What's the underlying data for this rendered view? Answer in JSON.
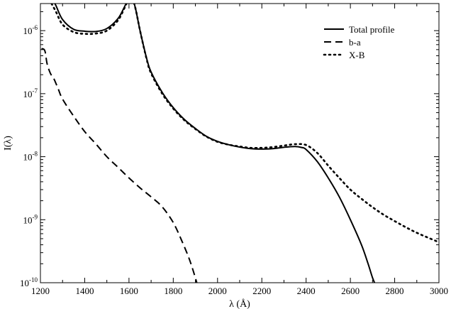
{
  "chart_data": {
    "type": "line",
    "xlabel": "λ (Å)",
    "ylabel": "I(λ)",
    "xlim": [
      1200,
      3000
    ],
    "ylim_log10": [
      -10,
      -5.57
    ],
    "y_scale": "log",
    "grid": false,
    "legend_placement": "top-right",
    "x_ticks": [
      1200,
      1400,
      1600,
      1800,
      2000,
      2200,
      2400,
      2600,
      2800,
      3000
    ],
    "x_tick_labels": [
      "1200",
      "1400",
      "1600",
      "1800",
      "2000",
      "2200",
      "2400",
      "2600",
      "2800",
      "3000"
    ],
    "y_ticks_log10": [
      -10,
      -9,
      -8,
      -7,
      -6
    ],
    "y_tick_labels": [
      {
        "base": "10",
        "exp": "-10"
      },
      {
        "base": "10",
        "exp": "-9"
      },
      {
        "base": "10",
        "exp": "-8"
      },
      {
        "base": "10",
        "exp": "-7"
      },
      {
        "base": "10",
        "exp": "-6"
      }
    ],
    "series": [
      {
        "name": "Total profile",
        "style": "solid",
        "x": [
          1250,
          1270,
          1300,
          1350,
          1400,
          1450,
          1500,
          1550,
          1580,
          1600,
          1615,
          1630,
          1650,
          1680,
          1700,
          1750,
          1800,
          1850,
          1900,
          1950,
          2000,
          2050,
          2100,
          2150,
          2200,
          2250,
          2300,
          2350,
          2380,
          2400,
          2450,
          2500,
          2550,
          2600,
          2650,
          2680,
          2700,
          2715
        ],
        "y": [
          3.4e-06,
          2.5e-06,
          1.5e-06,
          1.05e-06,
          9.8e-07,
          9.7e-07,
          1.08e-06,
          1.55e-06,
          2.4e-06,
          3.3e-06,
          3.3e-06,
          2.2e-06,
          1e-06,
          3.6e-07,
          2.2e-07,
          1.05e-07,
          6e-08,
          3.9e-08,
          2.8e-08,
          2.1e-08,
          1.75e-08,
          1.55e-08,
          1.42e-08,
          1.34e-08,
          1.32e-08,
          1.34e-08,
          1.41e-08,
          1.45e-08,
          1.4e-08,
          1.3e-08,
          8.4e-09,
          4.6e-09,
          2.3e-09,
          1e-09,
          4e-10,
          2e-10,
          1.2e-10,
          9e-11
        ]
      },
      {
        "name": "b-a",
        "style": "dashed",
        "x": [
          1205,
          1220,
          1230,
          1245,
          1260,
          1280,
          1300,
          1350,
          1400,
          1450,
          1500,
          1550,
          1600,
          1650,
          1700,
          1750,
          1800,
          1840,
          1870,
          1890,
          1910,
          1920
        ],
        "y": [
          5.2e-07,
          4.8e-07,
          3e-07,
          2.1e-07,
          1.75e-07,
          1.2e-07,
          8.2e-08,
          4.4e-08,
          2.5e-08,
          1.6e-08,
          1e-08,
          6.8e-09,
          4.6e-09,
          3.2e-09,
          2.3e-09,
          1.6e-09,
          9e-10,
          4.5e-10,
          2.5e-10,
          1.55e-10,
          9e-11,
          6.5e-11
        ]
      },
      {
        "name": "X-B",
        "style": "dotted",
        "x": [
          1250,
          1270,
          1300,
          1350,
          1400,
          1450,
          1500,
          1550,
          1580,
          1600,
          1615,
          1630,
          1650,
          1680,
          1700,
          1750,
          1800,
          1850,
          1900,
          1950,
          2000,
          2050,
          2100,
          2150,
          2200,
          2250,
          2300,
          2350,
          2400,
          2450,
          2500,
          2550,
          2600,
          2650,
          2700,
          2750,
          2800,
          2850,
          2900,
          2950,
          3000
        ],
        "y": [
          2.7e-06,
          2e-06,
          1.25e-06,
          9.5e-07,
          8.9e-07,
          9e-07,
          1e-06,
          1.45e-06,
          2.3e-06,
          3.2e-06,
          3.2e-06,
          2.2e-06,
          1e-06,
          3.5e-07,
          2.1e-07,
          1e-07,
          5.8e-08,
          3.8e-08,
          2.75e-08,
          2.08e-08,
          1.72e-08,
          1.55e-08,
          1.45e-08,
          1.38e-08,
          1.38e-08,
          1.42e-08,
          1.5e-08,
          1.58e-08,
          1.53e-08,
          1.15e-08,
          7.2e-09,
          4.6e-09,
          3e-09,
          2.15e-09,
          1.58e-09,
          1.2e-09,
          9.5e-10,
          7.6e-10,
          6.2e-10,
          5.2e-10,
          4.4e-10
        ]
      }
    ]
  }
}
